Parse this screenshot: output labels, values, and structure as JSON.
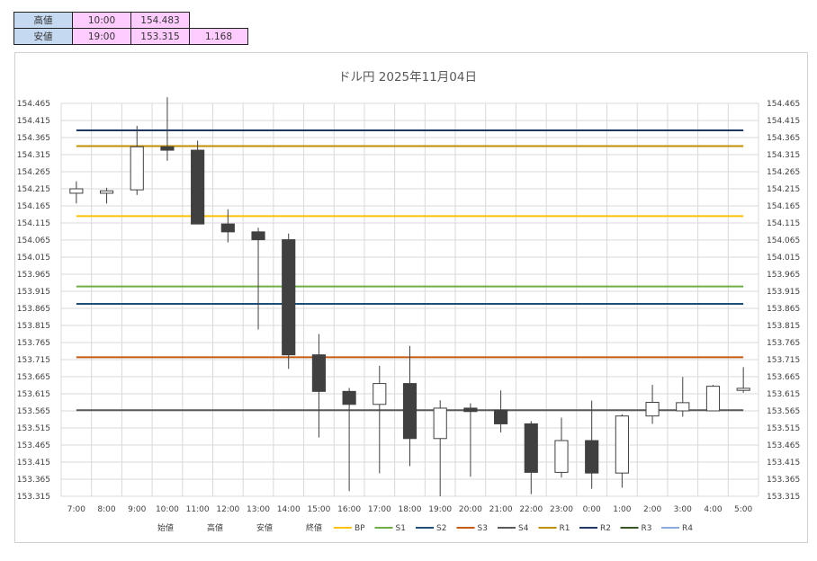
{
  "summary": {
    "high_label": "高値",
    "high_time": "10:00",
    "high_value": "154.483",
    "low_label": "安値",
    "low_time": "19:00",
    "low_value": "153.315",
    "range_value": "1.168"
  },
  "chart_data": {
    "type": "candlestick",
    "title": "ドル円  2025年11月04日",
    "ylim": [
      153.315,
      154.465
    ],
    "yticks": [
      "154.465",
      "154.415",
      "154.365",
      "154.315",
      "154.265",
      "154.215",
      "154.165",
      "154.115",
      "154.065",
      "154.015",
      "153.965",
      "153.915",
      "153.865",
      "153.815",
      "153.765",
      "153.715",
      "153.665",
      "153.615",
      "153.565",
      "153.515",
      "153.465",
      "153.415",
      "153.365",
      "153.315"
    ],
    "categories": [
      "7:00",
      "8:00",
      "9:00",
      "10:00",
      "11:00",
      "12:00",
      "13:00",
      "14:00",
      "15:00",
      "16:00",
      "17:00",
      "18:00",
      "19:00",
      "20:00",
      "21:00",
      "22:00",
      "23:00",
      "0:00",
      "1:00",
      "2:00",
      "3:00",
      "4:00",
      "5:00"
    ],
    "candles": [
      {
        "open": 154.202,
        "high": 154.237,
        "low": 154.172,
        "close": 154.215
      },
      {
        "open": 154.202,
        "high": 154.218,
        "low": 154.172,
        "close": 154.209
      },
      {
        "open": 154.212,
        "high": 154.399,
        "low": 154.197,
        "close": 154.338
      },
      {
        "open": 154.338,
        "high": 154.483,
        "low": 154.297,
        "close": 154.328
      },
      {
        "open": 154.328,
        "high": 154.356,
        "low": 154.112,
        "close": 154.112
      },
      {
        "open": 154.112,
        "high": 154.155,
        "low": 154.058,
        "close": 154.089
      },
      {
        "open": 154.089,
        "high": 154.101,
        "low": 153.803,
        "close": 154.066
      },
      {
        "open": 154.066,
        "high": 154.084,
        "low": 153.688,
        "close": 153.729
      },
      {
        "open": 153.729,
        "high": 153.79,
        "low": 153.487,
        "close": 153.622
      },
      {
        "open": 153.622,
        "high": 153.632,
        "low": 153.33,
        "close": 153.584
      },
      {
        "open": 153.584,
        "high": 153.697,
        "low": 153.382,
        "close": 153.645
      },
      {
        "open": 153.645,
        "high": 153.755,
        "low": 153.403,
        "close": 153.484
      },
      {
        "open": 153.484,
        "high": 153.596,
        "low": 153.315,
        "close": 153.573
      },
      {
        "open": 153.573,
        "high": 153.587,
        "low": 153.372,
        "close": 153.563
      },
      {
        "open": 153.567,
        "high": 153.625,
        "low": 153.502,
        "close": 153.527
      },
      {
        "open": 153.527,
        "high": 153.535,
        "low": 153.321,
        "close": 153.385
      },
      {
        "open": 153.385,
        "high": 153.545,
        "low": 153.37,
        "close": 153.478
      },
      {
        "open": 153.478,
        "high": 153.595,
        "low": 153.337,
        "close": 153.383
      },
      {
        "open": 153.383,
        "high": 153.555,
        "low": 153.34,
        "close": 153.55
      },
      {
        "open": 153.55,
        "high": 153.641,
        "low": 153.527,
        "close": 153.59
      },
      {
        "open": 153.565,
        "high": 153.664,
        "low": 153.548,
        "close": 153.589
      },
      {
        "open": 153.565,
        "high": 153.641,
        "low": 153.565,
        "close": 153.637
      },
      {
        "open": 153.625,
        "high": 153.693,
        "low": 153.618,
        "close": 153.631
      }
    ],
    "levels": [
      {
        "name": "BP",
        "value": 154.135,
        "color": "#ffc000"
      },
      {
        "name": "S1",
        "value": 153.929,
        "color": "#70ad47"
      },
      {
        "name": "S2",
        "value": 153.878,
        "color": "#1f4e79"
      },
      {
        "name": "S3",
        "value": 153.722,
        "color": "#c55a11"
      },
      {
        "name": "S4",
        "value": 153.567,
        "color": "#595959"
      },
      {
        "name": "R1",
        "value": 154.34,
        "color": "#bf8f00"
      },
      {
        "name": "R2",
        "value": 154.386,
        "color": "#203864"
      },
      {
        "name": "R3",
        "value": null,
        "color": "#375623"
      },
      {
        "name": "R4",
        "value": null,
        "color": "#8faadc"
      }
    ],
    "ohlc_legend": [
      "始値",
      "高値",
      "安値",
      "終値"
    ],
    "grid": true,
    "legend_position": "bottom"
  }
}
